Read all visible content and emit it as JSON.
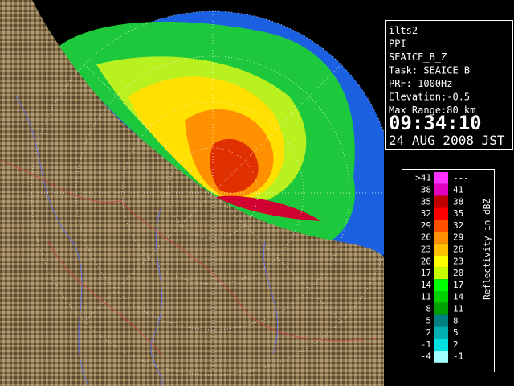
{
  "site_info": {
    "lines": [
      "ilts2",
      "PPI",
      "SEAICE_B_Z",
      "Task: SEAICE_B",
      "PRF: 1000Hz",
      "Elevation:-0.5",
      "Max Range:80 km"
    ],
    "time": "09:34:10",
    "date": "24 AUG 2008 JST"
  },
  "legend": {
    "title": "Reflectivity in dBZ",
    "rows": [
      {
        "low": ">41",
        "high": "---",
        "color": "#ff30ff"
      },
      {
        "low": "38",
        "high": "41",
        "color": "#e000c0"
      },
      {
        "low": "35",
        "high": "38",
        "color": "#c00000"
      },
      {
        "low": "32",
        "high": "35",
        "color": "#ff0000"
      },
      {
        "low": "29",
        "high": "32",
        "color": "#ff5000"
      },
      {
        "low": "26",
        "high": "29",
        "color": "#ff9000"
      },
      {
        "low": "23",
        "high": "26",
        "color": "#ffc000"
      },
      {
        "low": "20",
        "high": "23",
        "color": "#ffff00"
      },
      {
        "low": "17",
        "high": "20",
        "color": "#c8ff00"
      },
      {
        "low": "14",
        "high": "17",
        "color": "#00ff00"
      },
      {
        "low": "11",
        "high": "14",
        "color": "#00d000"
      },
      {
        "low": "8",
        "high": "11",
        "color": "#00a000"
      },
      {
        "low": "5",
        "high": "8",
        "color": "#008080"
      },
      {
        "low": "2",
        "high": "5",
        "color": "#00b0b0"
      },
      {
        "low": "-1",
        "high": "2",
        "color": "#00e0e0"
      },
      {
        "low": "-4",
        "high": "-1",
        "color": "#a0ffff"
      }
    ]
  }
}
